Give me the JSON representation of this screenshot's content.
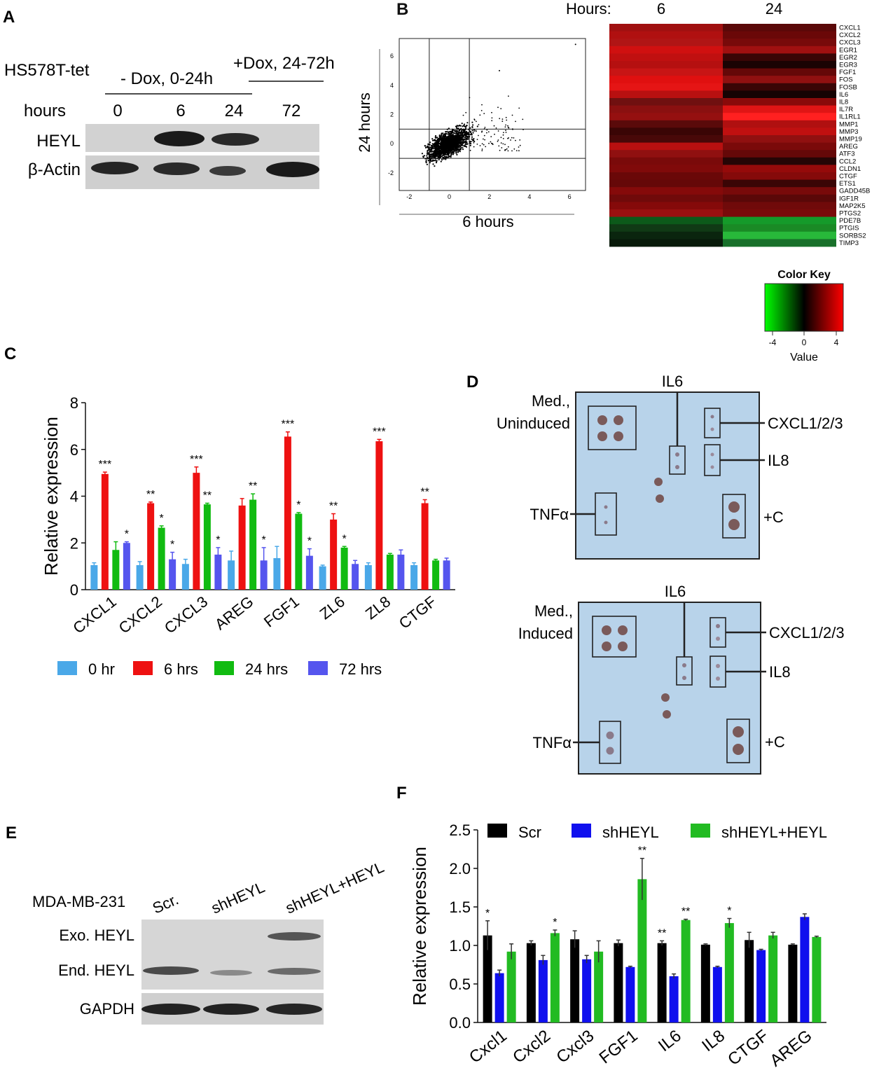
{
  "panels": {
    "A": "A",
    "B": "B",
    "C": "C",
    "D": "D",
    "E": "E",
    "F": "F"
  },
  "panel_a": {
    "cell_line": "HS578T-tet",
    "minus_dox": "- Dox, 0-24h",
    "plus_dox": "+Dox, 24-72h",
    "hours_label": "hours",
    "timepoints": [
      "0",
      "6",
      "24",
      "72"
    ],
    "rows": [
      "HEYL",
      "β-Actin"
    ]
  },
  "panel_b": {
    "scatter": {
      "xlabel": "6 hours",
      "ylabel": "24 hours",
      "xticks": [
        "-2",
        "0",
        "2",
        "4",
        "6"
      ],
      "yticks": [
        "6",
        "4",
        "2",
        "0",
        "-2"
      ]
    },
    "heatmap": {
      "hours_label": "Hours:",
      "col_labels": [
        "6",
        "24"
      ],
      "genes": [
        "CXCL1",
        "CXCL2",
        "CXCL3",
        "EGR1",
        "EGR2",
        "EGR3",
        "FGF1",
        "FOS",
        "FOSB",
        "IL6",
        "IL8",
        "IL7R",
        "IL1RL1",
        "MMP1",
        "MMP3",
        "MMP19",
        "AREG",
        "ATF3",
        "CCL2",
        "CLDN1",
        "CTGF",
        "ETS1",
        "GADD45B",
        "IGF1R",
        "MAP2K5",
        "PTGS2",
        "PDE7B",
        "PTGIS",
        "SORBS2",
        "TIMP3"
      ],
      "col6": [
        "#a01010",
        "#b01010",
        "#b01515",
        "#d01010",
        "#c01010",
        "#b51010",
        "#c81515",
        "#e01010",
        "#e51515",
        "#b81010",
        "#701010",
        "#8a1010",
        "#951010",
        "#5a0a0a",
        "#3a0505",
        "#480808",
        "#b81010",
        "#901010",
        "#7a0a0a",
        "#800a0a",
        "#6a0808",
        "#650808",
        "#850a0a",
        "#700a0a",
        "#850a0a",
        "#9a1010",
        "#0c5a1a",
        "#103a15",
        "#0a250e",
        "#081a0a"
      ],
      "col24": [
        "#5a0808",
        "#6a0808",
        "#780a0a",
        "#a01010",
        "#3a0505",
        "#1a0303",
        "#650808",
        "#901010",
        "#3a0505",
        "#150303",
        "#8a0a0a",
        "#e01515",
        "#ff2020",
        "#b01010",
        "#c01010",
        "#901010",
        "#7a0a0a",
        "#650808",
        "#250505",
        "#950a0a",
        "#850a0a",
        "#3a0505",
        "#780a0a",
        "#5a0808",
        "#700a0a",
        "#7a0a0a",
        "#159a2a",
        "#1a8a25",
        "#28b83a",
        "#18702a"
      ]
    },
    "color_key": {
      "title": "Color Key",
      "ticks": [
        "-4",
        "0",
        "4"
      ],
      "label": "Value"
    }
  },
  "panel_c": {
    "chart_data": {
      "type": "bar",
      "categories": [
        "CXCL1",
        "CXCL2",
        "CXCL3",
        "AREG",
        "FGF1",
        "ZL6",
        "ZL8",
        "CTGF"
      ],
      "series": [
        {
          "name": "0 hr",
          "color": "#4aa8e8",
          "values": [
            1.05,
            1.05,
            1.1,
            1.25,
            1.35,
            1.0,
            1.05,
            1.05
          ],
          "errors": [
            0.1,
            0.15,
            0.2,
            0.4,
            0.5,
            0.05,
            0.1,
            0.1
          ]
        },
        {
          "name": "6 hrs",
          "color": "#ee1111",
          "values": [
            4.95,
            3.7,
            5.0,
            3.6,
            6.55,
            3.0,
            6.35,
            3.7
          ],
          "errors": [
            0.08,
            0.05,
            0.25,
            0.3,
            0.2,
            0.25,
            0.08,
            0.15
          ]
        },
        {
          "name": "24 hrs",
          "color": "#11bb11",
          "values": [
            1.7,
            2.65,
            3.65,
            3.85,
            3.25,
            1.8,
            1.5,
            1.25
          ],
          "errors": [
            0.35,
            0.08,
            0.05,
            0.25,
            0.05,
            0.05,
            0.05,
            0.05
          ]
        },
        {
          "name": "72 hrs",
          "color": "#5555ee",
          "values": [
            2.0,
            1.3,
            1.5,
            1.25,
            1.45,
            1.1,
            1.5,
            1.25
          ],
          "errors": [
            0.05,
            0.3,
            0.3,
            0.55,
            0.3,
            0.15,
            0.2,
            0.1
          ]
        }
      ],
      "significance": [
        {
          "category": 0,
          "series": 1,
          "mark": "***"
        },
        {
          "category": 0,
          "series": 3,
          "mark": "*"
        },
        {
          "category": 1,
          "series": 1,
          "mark": "**"
        },
        {
          "category": 1,
          "series": 2,
          "mark": "*"
        },
        {
          "category": 1,
          "series": 3,
          "mark": "*"
        },
        {
          "category": 2,
          "series": 1,
          "mark": "***"
        },
        {
          "category": 2,
          "series": 2,
          "mark": "**"
        },
        {
          "category": 2,
          "series": 3,
          "mark": "*"
        },
        {
          "category": 3,
          "series": 2,
          "mark": "**"
        },
        {
          "category": 3,
          "series": 3,
          "mark": "*"
        },
        {
          "category": 4,
          "series": 1,
          "mark": "***"
        },
        {
          "category": 4,
          "series": 2,
          "mark": "*"
        },
        {
          "category": 4,
          "series": 3,
          "mark": "*"
        },
        {
          "category": 5,
          "series": 1,
          "mark": "**"
        },
        {
          "category": 5,
          "series": 2,
          "mark": "*"
        },
        {
          "category": 6,
          "series": 1,
          "mark": "***"
        },
        {
          "category": 7,
          "series": 1,
          "mark": "**"
        }
      ],
      "ylabel": "Relative expression",
      "ylim": [
        0,
        8
      ],
      "yticks": [
        0,
        2,
        4,
        6,
        8
      ]
    }
  },
  "panel_d": {
    "top": {
      "title": "IL6",
      "left_label_1": "Med.,",
      "left_label_2": "Uninduced",
      "cxcl": "CXCL1/2/3",
      "il8": "IL8",
      "tnf": "TNFα",
      "pos": "+C"
    },
    "bottom": {
      "title": "IL6",
      "left_label_1": "Med.,",
      "left_label_2": "Induced",
      "cxcl": "CXCL1/2/3",
      "il8": "IL8",
      "tnf": "TNFα",
      "pos": "+C"
    }
  },
  "panel_e": {
    "cell_line": "MDA-MB-231",
    "lanes": [
      "Scr.",
      "shHEYL",
      "shHEYL+HEYL"
    ],
    "rows": [
      "Exo. HEYL",
      "End. HEYL",
      "GAPDH"
    ]
  },
  "panel_f": {
    "chart_data": {
      "type": "bar",
      "categories": [
        "Cxcl1",
        "Cxcl2",
        "Cxcl3",
        "FGF1",
        "IL6",
        "IL8",
        "CTGF",
        "AREG"
      ],
      "series": [
        {
          "name": "Scr",
          "color": "#000000",
          "values": [
            1.13,
            1.03,
            1.08,
            1.03,
            1.03,
            1.01,
            1.07,
            1.01
          ],
          "errors": [
            0.19,
            0.03,
            0.11,
            0.04,
            0.03,
            0.01,
            0.1,
            0.01
          ]
        },
        {
          "name": "shHEYL",
          "color": "#1010ee",
          "values": [
            0.64,
            0.81,
            0.82,
            0.72,
            0.6,
            0.72,
            0.94,
            1.37
          ],
          "errors": [
            0.04,
            0.06,
            0.05,
            0.01,
            0.03,
            0.01,
            0.01,
            0.04
          ]
        },
        {
          "name": "shHEYL+HEYL",
          "color": "#22bb22",
          "values": [
            0.92,
            1.16,
            0.92,
            1.86,
            1.33,
            1.29,
            1.13,
            1.11
          ],
          "errors": [
            0.1,
            0.04,
            0.14,
            0.27,
            0.01,
            0.06,
            0.04,
            0.01
          ]
        }
      ],
      "significance": [
        {
          "category": 0,
          "series": 0,
          "mark": "*"
        },
        {
          "category": 1,
          "series": 2,
          "mark": "*"
        },
        {
          "category": 3,
          "series": 2,
          "mark": "**"
        },
        {
          "category": 4,
          "series": 0,
          "mark": "**"
        },
        {
          "category": 4,
          "series": 2,
          "mark": "**"
        },
        {
          "category": 5,
          "series": 2,
          "mark": "*"
        }
      ],
      "ylabel": "Relative expression",
      "ylim": [
        0,
        2.5
      ],
      "yticks": [
        "0.0",
        "0.5",
        "1.0",
        "1.5",
        "2.0",
        "2.5"
      ]
    }
  }
}
